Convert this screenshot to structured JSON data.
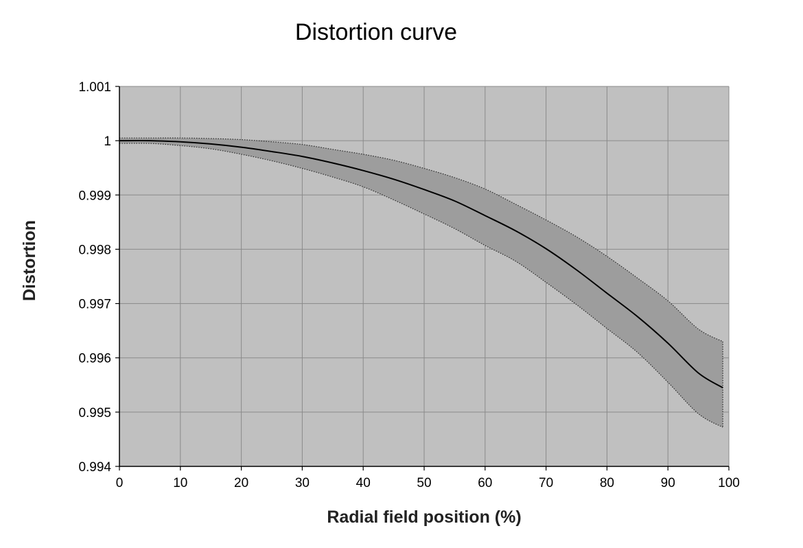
{
  "chart_data": {
    "type": "area",
    "title": "Distortion curve",
    "xlabel": "Radial field position (%)",
    "ylabel": "Distortion",
    "xlim": [
      0,
      100
    ],
    "ylim": [
      0.994,
      1.001
    ],
    "x_ticks": [
      "0",
      "10",
      "20",
      "30",
      "40",
      "50",
      "60",
      "70",
      "80",
      "90",
      "100"
    ],
    "y_ticks": [
      "1.001",
      "1",
      "0.999",
      "0.998",
      "0.997",
      "0.996",
      "0.995",
      "0.994"
    ],
    "grid": true,
    "series": [
      {
        "x": [
          0,
          5,
          10,
          15,
          20,
          25,
          30,
          35,
          40,
          45,
          50,
          55,
          60,
          65,
          70,
          75,
          80,
          85,
          90,
          95,
          99
        ],
        "values": [
          1.0,
          1.0,
          0.99998,
          0.99994,
          0.99988,
          0.9998,
          0.99971,
          0.99959,
          0.99945,
          0.99929,
          0.9991,
          0.99889,
          0.99862,
          0.99834,
          0.99801,
          0.99762,
          0.99719,
          0.99676,
          0.99627,
          0.99572,
          0.99545
        ]
      },
      {
        "x": [
          0,
          5,
          10,
          15,
          20,
          25,
          30,
          35,
          40,
          45,
          50,
          55,
          60,
          65,
          70,
          75,
          80,
          85,
          90,
          95,
          99
        ],
        "values": [
          1.00005,
          1.00005,
          1.00005,
          1.00004,
          1.00002,
          0.99998,
          0.99993,
          0.99984,
          0.99975,
          0.99964,
          0.99949,
          0.99932,
          0.99911,
          0.99883,
          0.99854,
          0.99823,
          0.99787,
          0.99747,
          0.99705,
          0.99653,
          0.9963
        ]
      },
      {
        "x": [
          0,
          5,
          10,
          15,
          20,
          25,
          30,
          35,
          40,
          45,
          50,
          55,
          60,
          65,
          70,
          75,
          80,
          85,
          90,
          95,
          99
        ],
        "values": [
          0.99995,
          0.99995,
          0.99991,
          0.99985,
          0.99975,
          0.99963,
          0.99949,
          0.99933,
          0.99915,
          0.99891,
          0.99865,
          0.99838,
          0.99807,
          0.99778,
          0.99739,
          0.99698,
          0.99654,
          0.9961,
          0.99555,
          0.99497,
          0.99472
        ]
      }
    ],
    "colors": {
      "plot_background": "#c0c0c0",
      "band_fill": "#9d9d9d",
      "grid": "#8a8a8a",
      "line": "#000000"
    }
  }
}
